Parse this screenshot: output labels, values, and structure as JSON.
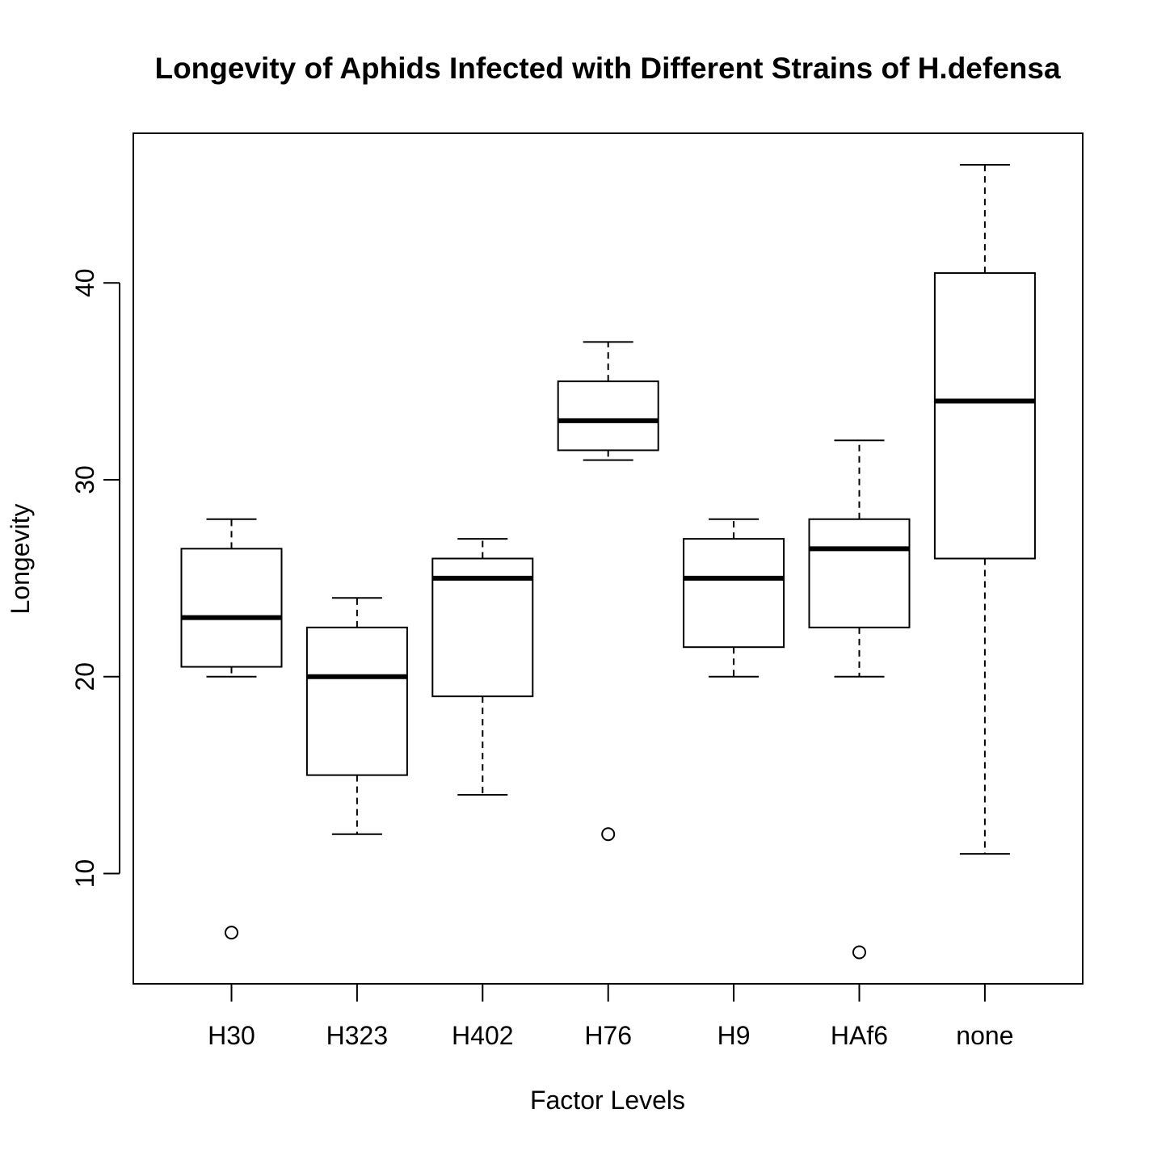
{
  "chart_data": {
    "type": "boxplot",
    "title": "Longevity of Aphids Infected with Different Strains of H.defensa",
    "xlabel": "Factor Levels",
    "ylabel": "Longevity",
    "ylim": [
      4.4,
      47.6
    ],
    "yticks": [
      10,
      20,
      30,
      40
    ],
    "grid": false,
    "categories": [
      "H30",
      "H323",
      "H402",
      "H76",
      "H9",
      "HAf6",
      "none"
    ],
    "boxes": [
      {
        "name": "H30",
        "whisker_low": 20,
        "q1": 20.5,
        "median": 23,
        "q3": 26.5,
        "whisker_high": 28,
        "outliers": [
          7
        ]
      },
      {
        "name": "H323",
        "whisker_low": 12,
        "q1": 15,
        "median": 20,
        "q3": 22.5,
        "whisker_high": 24,
        "outliers": []
      },
      {
        "name": "H402",
        "whisker_low": 14,
        "q1": 19,
        "median": 25,
        "q3": 26,
        "whisker_high": 27,
        "outliers": []
      },
      {
        "name": "H76",
        "whisker_low": 31,
        "q1": 31.5,
        "median": 33,
        "q3": 35,
        "whisker_high": 37,
        "outliers": [
          12
        ]
      },
      {
        "name": "H9",
        "whisker_low": 20,
        "q1": 21.5,
        "median": 25,
        "q3": 27,
        "whisker_high": 28,
        "outliers": []
      },
      {
        "name": "HAf6",
        "whisker_low": 20,
        "q1": 22.5,
        "median": 26.5,
        "q3": 28,
        "whisker_high": 32,
        "outliers": [
          6
        ]
      },
      {
        "name": "none",
        "whisker_low": 11,
        "q1": 26,
        "median": 34,
        "q3": 40.5,
        "whisker_high": 46,
        "outliers": []
      }
    ]
  }
}
